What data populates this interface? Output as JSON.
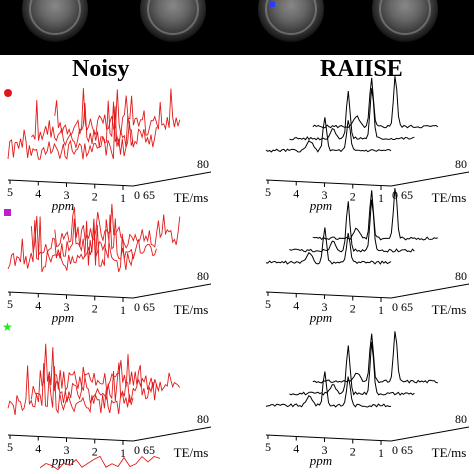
{
  "header": {
    "left_title": "Noisy",
    "right_title": "RAIISE"
  },
  "markers": [
    {
      "shape": "circle",
      "color": "#e0161b"
    },
    {
      "shape": "square",
      "color": "#c21ec8"
    },
    {
      "shape": "star",
      "color": "#1ee81e"
    }
  ],
  "axis": {
    "ppm_label": "ppm",
    "te_label": "TE/ms",
    "ppm_ticks": [
      "5",
      "4",
      "3",
      "2",
      "1"
    ],
    "te_start_label": "0",
    "te_first_tick": "65",
    "te_end_tick": "80"
  },
  "colors": {
    "noisy": "#e21b1b",
    "denoised": "#000000",
    "axis": "#000000"
  }
}
